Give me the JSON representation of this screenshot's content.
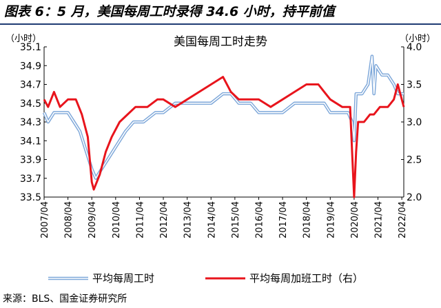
{
  "figure": {
    "title": "图表 6：5 月，美国每周工时录得 34.6 小时，持平前值",
    "source": "来源：BLS、国金证券研究所"
  },
  "chart_data": {
    "type": "line",
    "title": "美国每周工时走势",
    "left_axis": {
      "unit": "（小时）",
      "min": 33.5,
      "max": 35.1,
      "ticks": [
        "33.5",
        "33.7",
        "33.9",
        "34.1",
        "34.3",
        "34.5",
        "34.7",
        "34.9",
        "35.1"
      ]
    },
    "right_axis": {
      "unit": "（小时）",
      "min": 2.0,
      "max": 4.0,
      "ticks": [
        "2.0",
        "2.5",
        "3.0",
        "3.5",
        "4.0"
      ]
    },
    "x_ticks": [
      "2007/04",
      "2008/04",
      "2009/04",
      "2010/04",
      "2011/04",
      "2012/04",
      "2013/04",
      "2014/04",
      "2015/04",
      "2016/04",
      "2017/04",
      "2018/04",
      "2019/04",
      "2020/04",
      "2021/04",
      "2022/04"
    ],
    "x_start": "2007/04",
    "x_end": "2022/05",
    "grid": false,
    "legend_position": "bottom",
    "series": [
      {
        "name": "平均每周工时",
        "axis": "left",
        "color": "#7da7d9",
        "style": "double-line",
        "points": [
          [
            "2007/04",
            34.4
          ],
          [
            "2007/06",
            34.3
          ],
          [
            "2007/09",
            34.4
          ],
          [
            "2008/01",
            34.4
          ],
          [
            "2008/04",
            34.4
          ],
          [
            "2008/07",
            34.3
          ],
          [
            "2008/10",
            34.2
          ],
          [
            "2009/01",
            34.0
          ],
          [
            "2009/04",
            33.8
          ],
          [
            "2009/06",
            33.7
          ],
          [
            "2009/09",
            33.8
          ],
          [
            "2009/12",
            33.9
          ],
          [
            "2010/03",
            34.0
          ],
          [
            "2010/06",
            34.1
          ],
          [
            "2010/09",
            34.2
          ],
          [
            "2011/01",
            34.3
          ],
          [
            "2011/06",
            34.3
          ],
          [
            "2011/12",
            34.4
          ],
          [
            "2012/04",
            34.4
          ],
          [
            "2012/10",
            34.5
          ],
          [
            "2013/04",
            34.5
          ],
          [
            "2013/10",
            34.5
          ],
          [
            "2014/04",
            34.5
          ],
          [
            "2014/10",
            34.6
          ],
          [
            "2015/02",
            34.6
          ],
          [
            "2015/06",
            34.5
          ],
          [
            "2015/12",
            34.5
          ],
          [
            "2016/04",
            34.4
          ],
          [
            "2016/10",
            34.4
          ],
          [
            "2017/04",
            34.4
          ],
          [
            "2017/10",
            34.5
          ],
          [
            "2018/04",
            34.5
          ],
          [
            "2018/10",
            34.5
          ],
          [
            "2019/01",
            34.5
          ],
          [
            "2019/04",
            34.4
          ],
          [
            "2019/10",
            34.4
          ],
          [
            "2020/01",
            34.4
          ],
          [
            "2020/03",
            34.3
          ],
          [
            "2020/04",
            34.1
          ],
          [
            "2020/05",
            34.6
          ],
          [
            "2020/08",
            34.6
          ],
          [
            "2020/11",
            34.7
          ],
          [
            "2021/01",
            35.0
          ],
          [
            "2021/02",
            34.6
          ],
          [
            "2021/03",
            34.9
          ],
          [
            "2021/06",
            34.8
          ],
          [
            "2021/09",
            34.8
          ],
          [
            "2021/12",
            34.7
          ],
          [
            "2022/02",
            34.6
          ],
          [
            "2022/04",
            34.6
          ],
          [
            "2022/05",
            34.6
          ]
        ]
      },
      {
        "name": "平均每周加班工时（右）",
        "axis": "right",
        "color": "#e8141c",
        "style": "solid",
        "points": [
          [
            "2007/04",
            3.3
          ],
          [
            "2007/06",
            3.2
          ],
          [
            "2007/09",
            3.4
          ],
          [
            "2007/12",
            3.2
          ],
          [
            "2008/04",
            3.3
          ],
          [
            "2008/08",
            3.3
          ],
          [
            "2008/11",
            3.1
          ],
          [
            "2009/02",
            2.8
          ],
          [
            "2009/04",
            2.2
          ],
          [
            "2009/05",
            2.1
          ],
          [
            "2009/08",
            2.3
          ],
          [
            "2009/11",
            2.6
          ],
          [
            "2010/02",
            2.8
          ],
          [
            "2010/06",
            3.0
          ],
          [
            "2010/10",
            3.1
          ],
          [
            "2011/02",
            3.2
          ],
          [
            "2011/08",
            3.2
          ],
          [
            "2012/01",
            3.3
          ],
          [
            "2012/04",
            3.3
          ],
          [
            "2012/10",
            3.2
          ],
          [
            "2013/04",
            3.3
          ],
          [
            "2013/10",
            3.4
          ],
          [
            "2014/04",
            3.5
          ],
          [
            "2014/10",
            3.6
          ],
          [
            "2015/02",
            3.4
          ],
          [
            "2015/06",
            3.3
          ],
          [
            "2015/12",
            3.3
          ],
          [
            "2016/04",
            3.3
          ],
          [
            "2016/10",
            3.2
          ],
          [
            "2017/04",
            3.3
          ],
          [
            "2017/10",
            3.4
          ],
          [
            "2018/04",
            3.5
          ],
          [
            "2018/10",
            3.5
          ],
          [
            "2019/01",
            3.4
          ],
          [
            "2019/04",
            3.3
          ],
          [
            "2019/10",
            3.2
          ],
          [
            "2020/02",
            3.2
          ],
          [
            "2020/04",
            2.0
          ],
          [
            "2020/05",
            2.6
          ],
          [
            "2020/06",
            3.0
          ],
          [
            "2020/09",
            3.0
          ],
          [
            "2020/12",
            3.1
          ],
          [
            "2021/02",
            3.1
          ],
          [
            "2021/05",
            3.2
          ],
          [
            "2021/09",
            3.2
          ],
          [
            "2021/12",
            3.3
          ],
          [
            "2022/02",
            3.5
          ],
          [
            "2022/04",
            3.3
          ],
          [
            "2022/05",
            3.2
          ]
        ]
      }
    ]
  }
}
